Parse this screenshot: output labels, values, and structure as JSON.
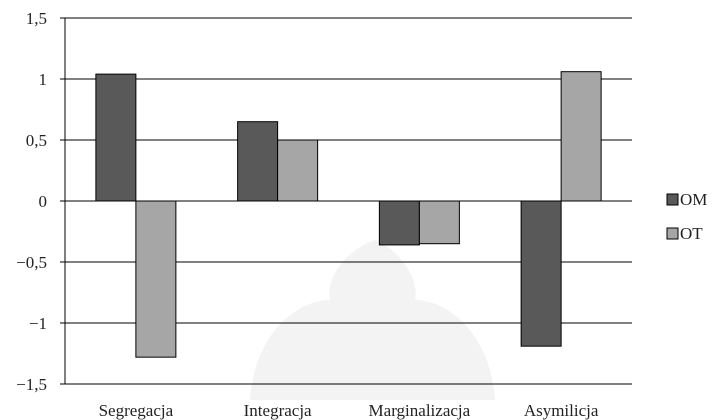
{
  "chart_data": {
    "type": "bar",
    "categories": [
      "Segregacja",
      "Integracja",
      "Marginalizacja",
      "Asymilicja"
    ],
    "series": [
      {
        "name": "OM",
        "color": "#595959",
        "values": [
          1.04,
          0.65,
          -0.36,
          -1.19
        ]
      },
      {
        "name": "OT",
        "color": "#a6a6a6",
        "values": [
          -1.28,
          0.5,
          -0.35,
          1.06
        ]
      }
    ],
    "yticks": [
      "1,5",
      "1",
      "0,5",
      "0",
      "−0,5",
      "−1",
      "−1,5"
    ],
    "ylim": [
      -1.5,
      1.5
    ],
    "grid": true,
    "legend_position": "right"
  }
}
